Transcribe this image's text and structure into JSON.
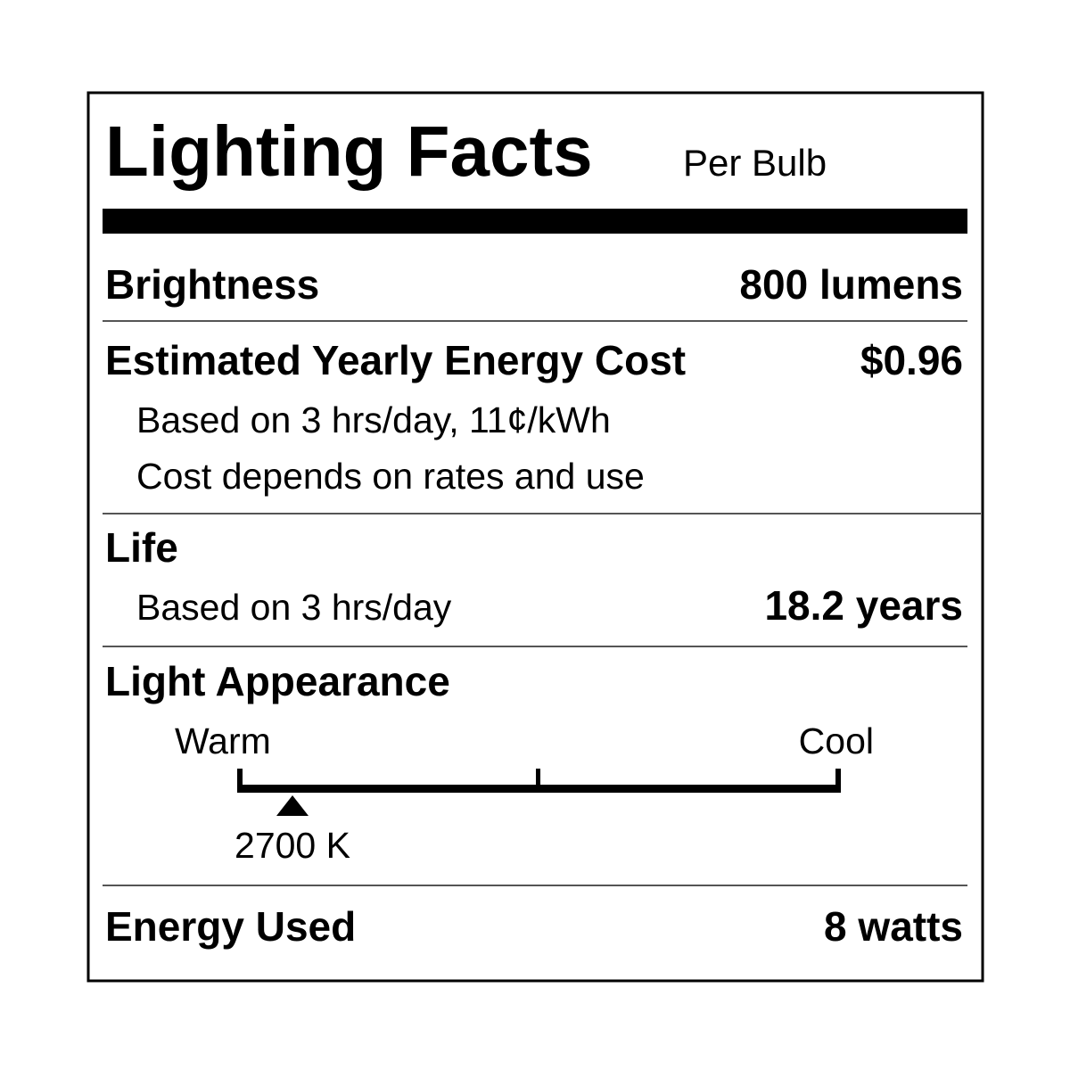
{
  "header": {
    "title": "Lighting Facts",
    "subtitle": "Per Bulb"
  },
  "rows": [
    {
      "label": "Brightness",
      "value": "800 lumens"
    },
    {
      "label": "Estimated Yearly Energy Cost",
      "value": "$0.96",
      "notes": [
        "Based on 3 hrs/day, 11¢/kWh",
        "Cost depends on rates and use"
      ]
    },
    {
      "label": "Life",
      "note": "Based on 3 hrs/day",
      "value": "18.2 years"
    },
    {
      "label": "Light Appearance",
      "scale": {
        "low": "Warm",
        "high": "Cool",
        "marker": "2700 K"
      }
    },
    {
      "label": "Energy Used",
      "value": "8 watts"
    }
  ]
}
